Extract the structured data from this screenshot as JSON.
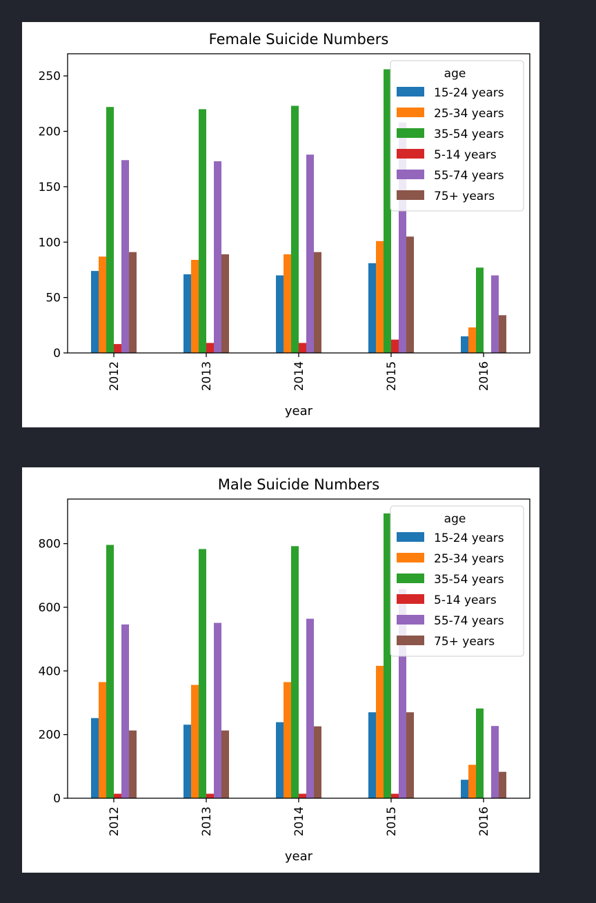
{
  "chart_data": [
    {
      "type": "bar",
      "title": "Female Suicide Numbers",
      "xlabel": "year",
      "ylabel": "",
      "categories": [
        "2012",
        "2013",
        "2014",
        "2015",
        "2016"
      ],
      "ylim": [
        0,
        270
      ],
      "yticks": [
        0,
        50,
        100,
        150,
        200,
        250
      ],
      "legend": {
        "title": "age",
        "placement": "top-right"
      },
      "series": [
        {
          "name": "15-24 years",
          "color": "#1f77b4",
          "values": [
            74,
            71,
            70,
            81,
            15
          ]
        },
        {
          "name": "25-34 years",
          "color": "#ff7f0e",
          "values": [
            87,
            84,
            89,
            101,
            23
          ]
        },
        {
          "name": "35-54 years",
          "color": "#2ca02c",
          "values": [
            222,
            220,
            223,
            256,
            77
          ]
        },
        {
          "name": "5-14 years",
          "color": "#d62728",
          "values": [
            8,
            9,
            9,
            12,
            0
          ]
        },
        {
          "name": "55-74 years",
          "color": "#9467bd",
          "values": [
            174,
            173,
            179,
            208,
            70
          ]
        },
        {
          "name": "75+ years",
          "color": "#8c564b",
          "values": [
            91,
            89,
            91,
            105,
            34
          ]
        }
      ]
    },
    {
      "type": "bar",
      "title": "Male Suicide Numbers",
      "xlabel": "year",
      "ylabel": "",
      "categories": [
        "2012",
        "2013",
        "2014",
        "2015",
        "2016"
      ],
      "ylim": [
        0,
        940
      ],
      "yticks": [
        0,
        200,
        400,
        600,
        800
      ],
      "legend": {
        "title": "age",
        "placement": "top-right"
      },
      "series": [
        {
          "name": "15-24 years",
          "color": "#1f77b4",
          "values": [
            252,
            231,
            239,
            270,
            58
          ]
        },
        {
          "name": "25-34 years",
          "color": "#ff7f0e",
          "values": [
            365,
            356,
            365,
            416,
            105
          ]
        },
        {
          "name": "35-54 years",
          "color": "#2ca02c",
          "values": [
            796,
            783,
            792,
            895,
            282
          ]
        },
        {
          "name": "5-14 years",
          "color": "#d62728",
          "values": [
            14,
            14,
            14,
            14,
            0
          ]
        },
        {
          "name": "55-74 years",
          "color": "#9467bd",
          "values": [
            546,
            551,
            564,
            657,
            227
          ]
        },
        {
          "name": "75+ years",
          "color": "#8c564b",
          "values": [
            213,
            213,
            226,
            270,
            83
          ]
        }
      ]
    }
  ]
}
